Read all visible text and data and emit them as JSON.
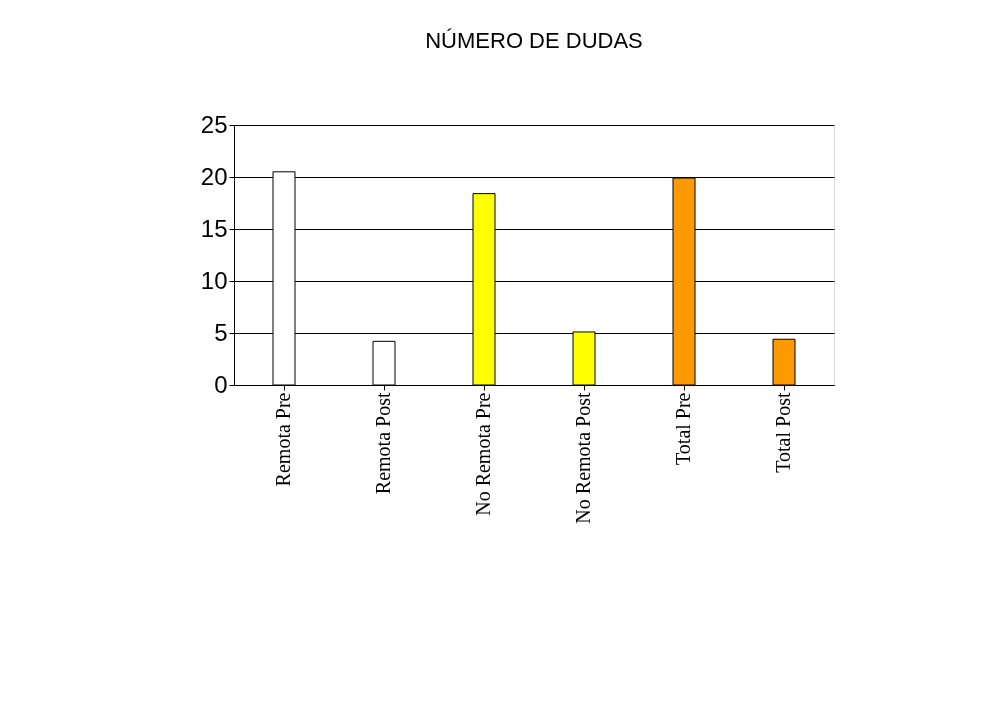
{
  "chart_data": {
    "type": "bar",
    "title": "NÚMERO DE DUDAS",
    "categories": [
      "Remota Pre",
      "Remota Post",
      "No Remota Pre",
      "No Remota Post",
      "Total Pre",
      "Total Post"
    ],
    "values": [
      20.5,
      4.2,
      18.4,
      5.1,
      19.9,
      4.4
    ],
    "colors": [
      "#ffffff",
      "#ffffff",
      "#ffff00",
      "#ffff00",
      "#ff9900",
      "#ff9900"
    ],
    "ylim": [
      0,
      25
    ],
    "yticks": [
      0,
      5,
      10,
      15,
      20,
      25
    ],
    "grid": "y"
  }
}
